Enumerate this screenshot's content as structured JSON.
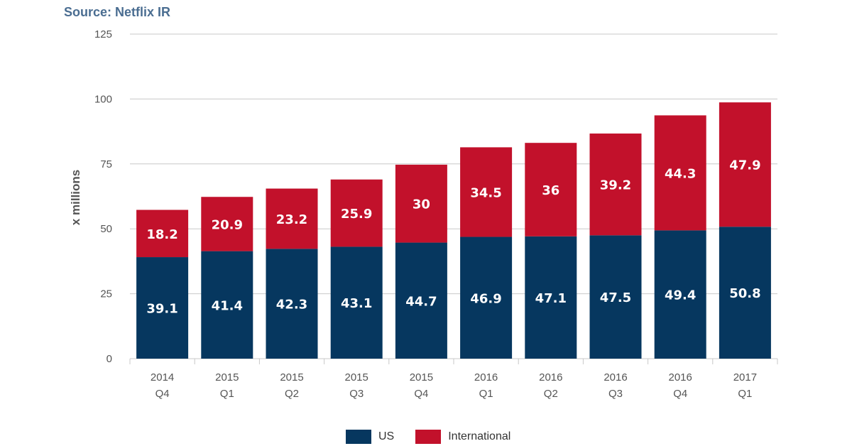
{
  "source": "Source: Netflix IR",
  "colors": {
    "us": "#06375f",
    "international": "#c2112b",
    "grid": "#c8c8c8"
  },
  "chart_data": {
    "type": "bar",
    "stacked": true,
    "title": "",
    "xlabel": "",
    "ylabel": "x millions",
    "ylim": [
      0,
      125
    ],
    "yticks": [
      0,
      25,
      50,
      75,
      100,
      125
    ],
    "grid": true,
    "legend_position": "bottom",
    "categories": [
      [
        "2014",
        "Q4"
      ],
      [
        "2015",
        "Q1"
      ],
      [
        "2015",
        "Q2"
      ],
      [
        "2015",
        "Q3"
      ],
      [
        "2015",
        "Q4"
      ],
      [
        "2016",
        "Q1"
      ],
      [
        "2016",
        "Q2"
      ],
      [
        "2016",
        "Q3"
      ],
      [
        "2016",
        "Q4"
      ],
      [
        "2017",
        "Q1"
      ]
    ],
    "series": [
      {
        "name": "US",
        "values": [
          39.1,
          41.4,
          42.3,
          43.1,
          44.7,
          46.9,
          47.1,
          47.5,
          49.4,
          50.8
        ]
      },
      {
        "name": "International",
        "values": [
          18.2,
          20.9,
          23.2,
          25.9,
          30,
          34.5,
          36,
          39.2,
          44.3,
          47.9
        ]
      }
    ]
  }
}
